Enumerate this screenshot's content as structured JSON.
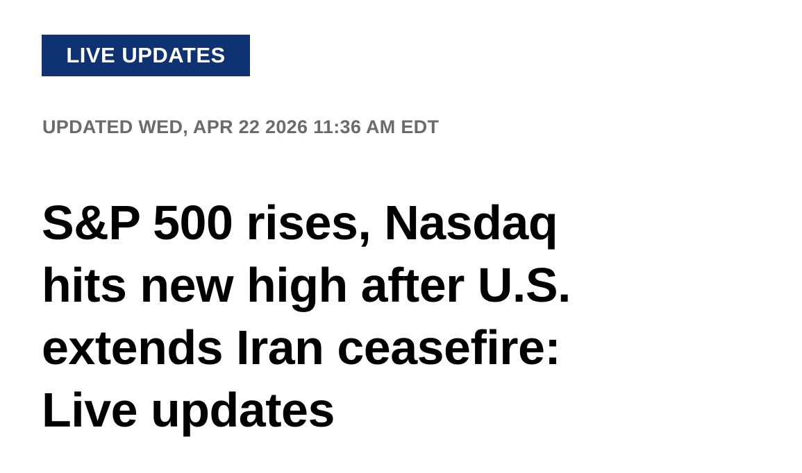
{
  "badge": "LIVE UPDATES",
  "timestamp": "UPDATED WED, APR 22 2026 11:36 AM EDT",
  "headline": {
    "lines": [
      "S&P 500 rises, Nasdaq",
      "hits new high after U.S.",
      "extends Iran ceasefire:",
      "Live updates"
    ]
  }
}
